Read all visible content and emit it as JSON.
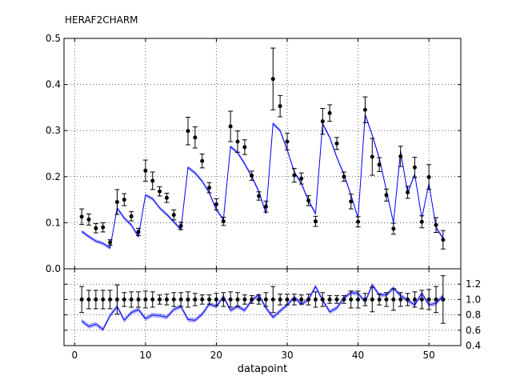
{
  "chart_data": [
    {
      "panel": "main",
      "type": "scatter",
      "title": "HERAF2CHARM",
      "xlabel": "",
      "ylabel": "",
      "xlim": [
        -1.5,
        54.5
      ],
      "ylim": [
        0.0,
        0.5
      ],
      "xticks": [
        0,
        10,
        20,
        30,
        40,
        50
      ],
      "yticks": [
        0.0,
        0.1,
        0.2,
        0.3,
        0.4,
        0.5
      ],
      "ytick_labels": [
        "0.0",
        "0.1",
        "0.2",
        "0.3",
        "0.4",
        "0.5"
      ],
      "grid": true,
      "series": [
        {
          "kind": "data-with-errors",
          "color": "#000000",
          "x": [
            1,
            2,
            3,
            4,
            5,
            6,
            7,
            8,
            9,
            10,
            11,
            12,
            13,
            14,
            15,
            16,
            17,
            18,
            19,
            20,
            21,
            22,
            23,
            24,
            25,
            26,
            27,
            28,
            29,
            30,
            31,
            32,
            33,
            34,
            35,
            36,
            37,
            38,
            39,
            40,
            41,
            42,
            43,
            44,
            45,
            46,
            47,
            48,
            49,
            50,
            51,
            52
          ],
          "y": [
            0.113,
            0.107,
            0.088,
            0.09,
            0.057,
            0.145,
            0.15,
            0.114,
            0.08,
            0.213,
            0.191,
            0.168,
            0.154,
            0.117,
            0.093,
            0.299,
            0.285,
            0.234,
            0.176,
            0.14,
            0.103,
            0.309,
            0.276,
            0.264,
            0.202,
            0.158,
            0.135,
            0.412,
            0.353,
            0.276,
            0.203,
            0.196,
            0.148,
            0.103,
            0.32,
            0.338,
            0.272,
            0.2,
            0.146,
            0.102,
            0.345,
            0.243,
            0.226,
            0.16,
            0.087,
            0.244,
            0.166,
            0.22,
            0.102,
            0.199,
            0.095,
            0.063
          ],
          "yerr": [
            0.017,
            0.012,
            0.01,
            0.01,
            0.006,
            0.027,
            0.013,
            0.01,
            0.008,
            0.023,
            0.019,
            0.01,
            0.01,
            0.011,
            0.008,
            0.03,
            0.023,
            0.015,
            0.011,
            0.012,
            0.009,
            0.033,
            0.023,
            0.016,
            0.01,
            0.009,
            0.012,
            0.067,
            0.023,
            0.018,
            0.015,
            0.012,
            0.011,
            0.011,
            0.028,
            0.018,
            0.013,
            0.01,
            0.016,
            0.011,
            0.028,
            0.04,
            0.015,
            0.013,
            0.012,
            0.022,
            0.013,
            0.022,
            0.013,
            0.027,
            0.016,
            0.02
          ]
        },
        {
          "kind": "theory-band",
          "color": "#0000ff",
          "x": [
            1,
            2,
            3,
            4,
            5,
            6,
            7,
            8,
            9,
            10,
            11,
            12,
            13,
            14,
            15,
            16,
            17,
            18,
            19,
            20,
            21,
            22,
            23,
            24,
            25,
            26,
            27,
            28,
            29,
            30,
            31,
            32,
            33,
            34,
            35,
            36,
            37,
            38,
            39,
            40,
            41,
            42,
            43,
            44,
            45,
            46,
            47,
            48,
            49,
            50,
            51,
            52
          ],
          "y": [
            0.081,
            0.07,
            0.06,
            0.055,
            0.045,
            0.132,
            0.11,
            0.095,
            0.07,
            0.16,
            0.152,
            0.132,
            0.118,
            0.102,
            0.085,
            0.22,
            0.208,
            0.19,
            0.165,
            0.128,
            0.107,
            0.265,
            0.252,
            0.228,
            0.2,
            0.168,
            0.12,
            0.315,
            0.3,
            0.258,
            0.21,
            0.185,
            0.148,
            0.12,
            0.315,
            0.285,
            0.242,
            0.205,
            0.16,
            0.11,
            0.335,
            0.29,
            0.24,
            0.17,
            0.1,
            0.255,
            0.165,
            0.205,
            0.11,
            0.185,
            0.09,
            0.066
          ],
          "band": 0.004
        }
      ]
    },
    {
      "panel": "ratio",
      "type": "scatter",
      "xlabel": "datapoint",
      "ylabel": "",
      "xlim": [
        -1.5,
        54.5
      ],
      "ylim": [
        0.4,
        1.4
      ],
      "xticks": [
        0,
        10,
        20,
        30,
        40,
        50
      ],
      "xtick_labels": [
        "0",
        "10",
        "20",
        "30",
        "40",
        "50"
      ],
      "yticks": [
        0.4,
        0.6,
        0.8,
        1.0,
        1.2
      ],
      "ytick_labels": [
        "0.4",
        "0.6",
        "0.8",
        "1.0",
        "1.2"
      ],
      "grid": true,
      "series": [
        {
          "kind": "data-with-errors",
          "color": "#000000",
          "x": [
            1,
            2,
            3,
            4,
            5,
            6,
            7,
            8,
            9,
            10,
            11,
            12,
            13,
            14,
            15,
            16,
            17,
            18,
            19,
            20,
            21,
            22,
            23,
            24,
            25,
            26,
            27,
            28,
            29,
            30,
            31,
            32,
            33,
            34,
            35,
            36,
            37,
            38,
            39,
            40,
            41,
            42,
            43,
            44,
            45,
            46,
            47,
            48,
            49,
            50,
            51,
            52
          ],
          "y": [
            1.0,
            1.0,
            1.0,
            1.0,
            1.0,
            1.0,
            1.0,
            1.0,
            1.0,
            1.0,
            1.0,
            1.0,
            1.0,
            1.0,
            1.0,
            1.0,
            1.0,
            1.0,
            1.0,
            1.0,
            1.0,
            1.0,
            1.0,
            1.0,
            1.0,
            1.0,
            1.0,
            1.0,
            1.0,
            1.0,
            1.0,
            1.0,
            1.0,
            1.0,
            1.0,
            1.0,
            1.0,
            1.0,
            1.0,
            1.0,
            1.0,
            1.0,
            1.0,
            1.0,
            1.0,
            1.0,
            1.0,
            1.0,
            1.0,
            1.0,
            1.0,
            1.0
          ],
          "yerr": [
            0.17,
            0.12,
            0.12,
            0.12,
            0.12,
            0.19,
            0.09,
            0.1,
            0.1,
            0.11,
            0.1,
            0.06,
            0.07,
            0.09,
            0.09,
            0.1,
            0.08,
            0.06,
            0.06,
            0.08,
            0.09,
            0.1,
            0.09,
            0.06,
            0.05,
            0.06,
            0.09,
            0.17,
            0.07,
            0.07,
            0.07,
            0.06,
            0.07,
            0.1,
            0.09,
            0.05,
            0.05,
            0.05,
            0.11,
            0.11,
            0.08,
            0.16,
            0.07,
            0.09,
            0.14,
            0.09,
            0.08,
            0.1,
            0.12,
            0.13,
            0.17,
            0.31
          ]
        },
        {
          "kind": "theory-band",
          "color": "#0000ff",
          "x": [
            1,
            2,
            3,
            4,
            5,
            6,
            7,
            8,
            9,
            10,
            11,
            12,
            13,
            14,
            15,
            16,
            17,
            18,
            19,
            20,
            21,
            22,
            23,
            24,
            25,
            26,
            27,
            28,
            29,
            30,
            31,
            32,
            33,
            34,
            35,
            36,
            37,
            38,
            39,
            40,
            41,
            42,
            43,
            44,
            45,
            46,
            47,
            48,
            49,
            50,
            51,
            52
          ],
          "y": [
            0.72,
            0.65,
            0.68,
            0.61,
            0.79,
            0.91,
            0.73,
            0.83,
            0.87,
            0.75,
            0.8,
            0.79,
            0.77,
            0.87,
            0.91,
            0.74,
            0.73,
            0.81,
            0.94,
            0.91,
            1.04,
            0.86,
            0.91,
            0.86,
            0.99,
            1.06,
            0.89,
            0.77,
            0.85,
            0.93,
            1.03,
            0.94,
            1.0,
            1.17,
            0.99,
            0.84,
            0.89,
            1.02,
            1.09,
            1.08,
            0.97,
            1.19,
            1.06,
            1.06,
            1.15,
            1.05,
            0.99,
            0.93,
            1.08,
            0.93,
            0.95,
            1.05
          ],
          "band": 0.03
        }
      ]
    }
  ]
}
